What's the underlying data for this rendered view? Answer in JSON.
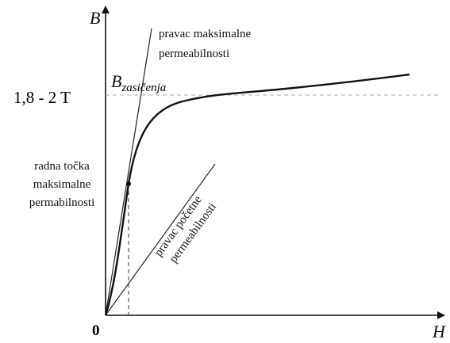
{
  "axes": {
    "y_label": "B",
    "x_label": "H",
    "origin": "0"
  },
  "saturation": {
    "level": "1,8 - 2 T",
    "symbol": "B",
    "subscript": "zasičenja"
  },
  "max_line_label": [
    "pravac maksimalne",
    "permeabilnosti"
  ],
  "working_point_label": [
    "radna točka",
    "maksimalne",
    "permabilnosti"
  ],
  "initial_line_label": [
    "pravac početne",
    "permeabilnosti"
  ]
}
